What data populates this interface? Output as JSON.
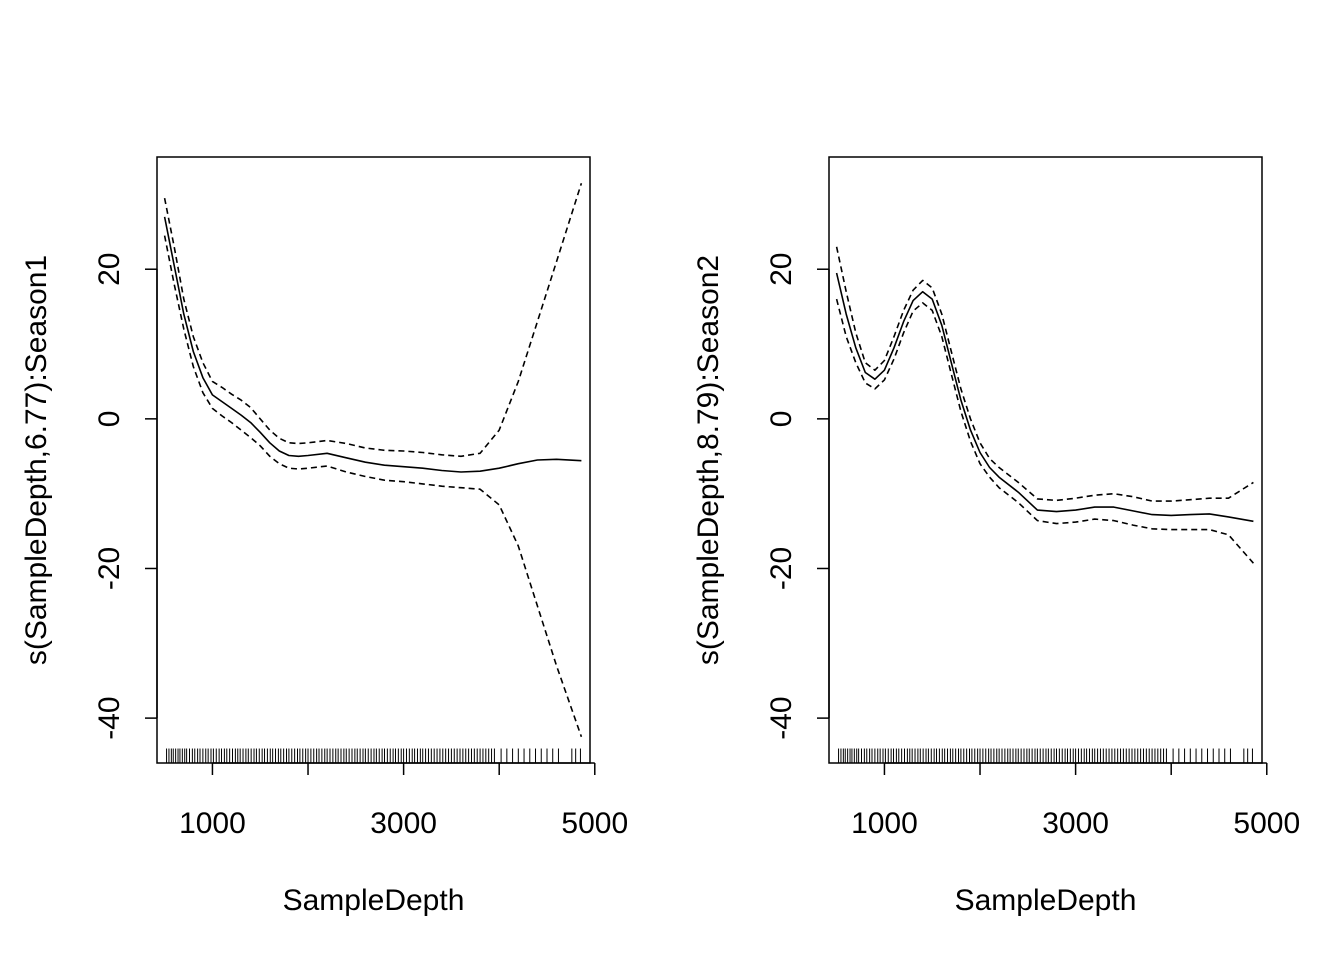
{
  "chart_data": [
    {
      "type": "line",
      "title": "",
      "xlabel": "SampleDepth",
      "ylabel": "s(SampleDepth,6.77):Season1",
      "xlim": [
        420,
        4950
      ],
      "ylim": [
        -46,
        35
      ],
      "xticks": [
        1000,
        2000,
        3000,
        4000,
        5000
      ],
      "xtick_labels": [
        "1000",
        "",
        "3000",
        "",
        "5000"
      ],
      "yticks": [
        20,
        0,
        -20,
        -40
      ],
      "ytick_labels": [
        "20",
        "0",
        "-20",
        "-40"
      ],
      "rug_level": -45,
      "series": [
        {
          "name": "estimate",
          "style": "solid",
          "x": [
            500,
            600,
            700,
            800,
            900,
            1000,
            1100,
            1200,
            1300,
            1400,
            1500,
            1600,
            1700,
            1800,
            1900,
            2000,
            2200,
            2400,
            2600,
            2800,
            3000,
            3200,
            3400,
            3600,
            3800,
            4000,
            4200,
            4400,
            4600,
            4860
          ],
          "y": [
            27,
            20.5,
            14,
            9,
            5.5,
            3.2,
            2.3,
            1.4,
            0.5,
            -0.5,
            -1.8,
            -3.2,
            -4.3,
            -4.9,
            -5.0,
            -4.9,
            -4.6,
            -5.2,
            -5.8,
            -6.2,
            -6.4,
            -6.6,
            -6.9,
            -7.1,
            -7.0,
            -6.6,
            -6.0,
            -5.5,
            -5.4,
            -5.6
          ]
        },
        {
          "name": "upper band",
          "style": "dashed",
          "x": [
            500,
            600,
            700,
            800,
            900,
            1000,
            1100,
            1200,
            1300,
            1400,
            1500,
            1600,
            1700,
            1800,
            1900,
            2000,
            2200,
            2400,
            2600,
            2800,
            3000,
            3200,
            3400,
            3600,
            3800,
            4000,
            4200,
            4400,
            4600,
            4860
          ],
          "y": [
            29.5,
            23,
            16,
            11,
            7.5,
            5.0,
            4.2,
            3.3,
            2.5,
            1.5,
            0,
            -1.5,
            -2.6,
            -3.2,
            -3.3,
            -3.2,
            -2.9,
            -3.3,
            -3.9,
            -4.2,
            -4.3,
            -4.5,
            -4.8,
            -5.0,
            -4.6,
            -1.5,
            5,
            13,
            21,
            31.5
          ]
        },
        {
          "name": "lower band",
          "style": "dashed",
          "x": [
            500,
            600,
            700,
            800,
            900,
            1000,
            1100,
            1200,
            1300,
            1400,
            1500,
            1600,
            1700,
            1800,
            1900,
            2000,
            2200,
            2400,
            2600,
            2800,
            3000,
            3200,
            3400,
            3600,
            3800,
            4000,
            4200,
            4400,
            4600,
            4860
          ],
          "y": [
            24.5,
            18,
            12,
            7,
            3.5,
            1.4,
            0.4,
            -0.5,
            -1.5,
            -2.5,
            -3.6,
            -5.0,
            -6.0,
            -6.6,
            -6.7,
            -6.6,
            -6.3,
            -7.1,
            -7.7,
            -8.2,
            -8.4,
            -8.7,
            -9.0,
            -9.2,
            -9.4,
            -11.5,
            -17,
            -25,
            -33,
            -42.5
          ]
        }
      ],
      "rug": [
        520,
        545,
        570,
        590,
        615,
        640,
        660,
        685,
        710,
        730,
        760,
        790,
        815,
        845,
        870,
        900,
        930,
        955,
        985,
        1010,
        1040,
        1070,
        1095,
        1125,
        1150,
        1180,
        1210,
        1240,
        1265,
        1290,
        1320,
        1350,
        1375,
        1405,
        1435,
        1460,
        1490,
        1520,
        1545,
        1575,
        1605,
        1630,
        1660,
        1690,
        1715,
        1745,
        1775,
        1800,
        1830,
        1860,
        1890,
        1915,
        1945,
        1975,
        2000,
        2030,
        2060,
        2090,
        2115,
        2145,
        2175,
        2200,
        2230,
        2260,
        2290,
        2315,
        2345,
        2375,
        2400,
        2430,
        2460,
        2490,
        2515,
        2545,
        2575,
        2600,
        2630,
        2660,
        2690,
        2715,
        2745,
        2775,
        2800,
        2830,
        2860,
        2890,
        2915,
        2945,
        2975,
        3000,
        3030,
        3060,
        3090,
        3115,
        3145,
        3175,
        3200,
        3230,
        3260,
        3290,
        3320,
        3350,
        3380,
        3410,
        3440,
        3470,
        3500,
        3530,
        3560,
        3590,
        3620,
        3650,
        3680,
        3710,
        3740,
        3770,
        3800,
        3830,
        3860,
        3890,
        3920,
        3950,
        4020,
        4080,
        4140,
        4200,
        4260,
        4320,
        4380,
        4440,
        4500,
        4560,
        4620,
        4760,
        4800,
        4850
      ]
    },
    {
      "type": "line",
      "title": "",
      "xlabel": "SampleDepth",
      "ylabel": "s(SampleDepth,8.79):Season2",
      "xlim": [
        420,
        4950
      ],
      "ylim": [
        -46,
        35
      ],
      "xticks": [
        1000,
        2000,
        3000,
        4000,
        5000
      ],
      "xtick_labels": [
        "1000",
        "",
        "3000",
        "",
        "5000"
      ],
      "yticks": [
        20,
        0,
        -20,
        -40
      ],
      "ytick_labels": [
        "20",
        "0",
        "-20",
        "-40"
      ],
      "rug_level": -45,
      "series": [
        {
          "name": "estimate",
          "style": "solid",
          "x": [
            500,
            600,
            700,
            800,
            900,
            1000,
            1100,
            1200,
            1300,
            1400,
            1500,
            1600,
            1700,
            1800,
            1900,
            2000,
            2100,
            2200,
            2400,
            2600,
            2800,
            3000,
            3200,
            3400,
            3600,
            3800,
            4000,
            4200,
            4400,
            4600,
            4860
          ],
          "y": [
            19.5,
            14,
            9.5,
            6.2,
            5.3,
            6.5,
            9.5,
            13,
            15.8,
            17,
            16,
            12.5,
            7.5,
            2.5,
            -1.5,
            -4.5,
            -6.5,
            -7.8,
            -9.8,
            -12.2,
            -12.4,
            -12.2,
            -11.8,
            -11.8,
            -12.3,
            -12.8,
            -12.9,
            -12.8,
            -12.7,
            -13.1,
            -13.7
          ]
        },
        {
          "name": "upper band",
          "style": "dashed",
          "x": [
            500,
            600,
            700,
            800,
            900,
            1000,
            1100,
            1200,
            1300,
            1400,
            1500,
            1600,
            1700,
            1800,
            1900,
            2000,
            2100,
            2200,
            2400,
            2600,
            2800,
            3000,
            3200,
            3400,
            3600,
            3800,
            4000,
            4200,
            4400,
            4600,
            4860
          ],
          "y": [
            23,
            17,
            11.5,
            7.5,
            6.5,
            7.8,
            11,
            14.5,
            17.2,
            18.5,
            17.5,
            14,
            9,
            4,
            0,
            -3.2,
            -5.3,
            -6.5,
            -8.5,
            -10.7,
            -10.9,
            -10.6,
            -10.2,
            -10.0,
            -10.4,
            -11.0,
            -11.0,
            -10.8,
            -10.6,
            -10.6,
            -8.5
          ]
        },
        {
          "name": "lower band",
          "style": "dashed",
          "x": [
            500,
            600,
            700,
            800,
            900,
            1000,
            1100,
            1200,
            1300,
            1400,
            1500,
            1600,
            1700,
            1800,
            1900,
            2000,
            2100,
            2200,
            2400,
            2600,
            2800,
            3000,
            3200,
            3400,
            3600,
            3800,
            4000,
            4200,
            4400,
            4600,
            4860
          ],
          "y": [
            16,
            11,
            7.5,
            4.8,
            4.0,
            5.2,
            8.0,
            11.5,
            14.4,
            15.5,
            14.5,
            11,
            6,
            1,
            -3,
            -6,
            -7.8,
            -9.2,
            -11.2,
            -13.6,
            -14.0,
            -13.8,
            -13.4,
            -13.6,
            -14.2,
            -14.7,
            -14.8,
            -14.8,
            -14.8,
            -15.5,
            -19.3
          ]
        }
      ],
      "rug": [
        520,
        545,
        570,
        590,
        615,
        640,
        660,
        685,
        710,
        730,
        760,
        790,
        815,
        845,
        870,
        900,
        930,
        955,
        985,
        1010,
        1040,
        1070,
        1095,
        1125,
        1150,
        1180,
        1210,
        1240,
        1265,
        1290,
        1320,
        1350,
        1375,
        1405,
        1435,
        1460,
        1490,
        1520,
        1545,
        1575,
        1605,
        1630,
        1660,
        1690,
        1715,
        1745,
        1775,
        1800,
        1830,
        1860,
        1890,
        1915,
        1945,
        1975,
        2000,
        2030,
        2060,
        2090,
        2115,
        2145,
        2175,
        2200,
        2230,
        2260,
        2290,
        2315,
        2345,
        2375,
        2400,
        2430,
        2460,
        2490,
        2515,
        2545,
        2575,
        2600,
        2630,
        2660,
        2690,
        2715,
        2745,
        2775,
        2800,
        2830,
        2860,
        2890,
        2915,
        2945,
        2975,
        3000,
        3030,
        3060,
        3090,
        3115,
        3145,
        3175,
        3200,
        3230,
        3260,
        3290,
        3320,
        3350,
        3380,
        3410,
        3440,
        3470,
        3500,
        3530,
        3560,
        3590,
        3620,
        3650,
        3680,
        3710,
        3740,
        3770,
        3800,
        3830,
        3860,
        3890,
        3920,
        3950,
        4020,
        4080,
        4140,
        4200,
        4260,
        4320,
        4380,
        4440,
        4500,
        4560,
        4620,
        4760,
        4800,
        4850
      ]
    }
  ],
  "colors": {
    "line": "#000000",
    "background": "#ffffff"
  }
}
